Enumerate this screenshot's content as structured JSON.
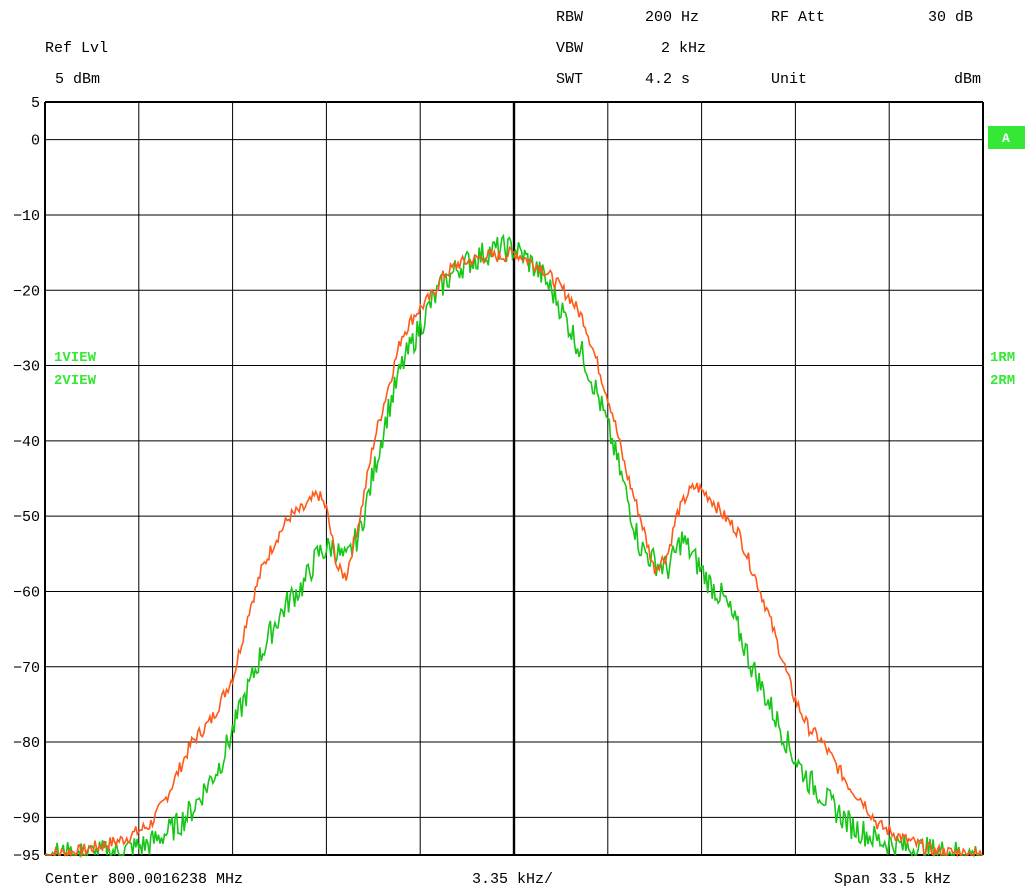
{
  "header": {
    "ref_lvl_label": "Ref Lvl",
    "ref_lvl_value": "5 dBm",
    "rbw_label": "RBW",
    "rbw_value": "200 Hz",
    "vbw_label": "VBW",
    "vbw_value": "2 kHz",
    "swt_label": "SWT",
    "swt_value": "4.2 s",
    "rfatt_label": "RF Att",
    "rfatt_value": "30 dB",
    "unit_label": "Unit",
    "unit_value": "dBm"
  },
  "footer": {
    "center": "Center 800.0016238 MHz",
    "per_div": "3.35 kHz/",
    "span": "Span 33.5 kHz"
  },
  "markers": {
    "trace_badge": "A",
    "view1": "1VIEW",
    "view2": "2VIEW",
    "rm1": "1RM",
    "rm2": "2RM"
  },
  "colors": {
    "trace1": "#ff5a1a",
    "trace2": "#17c617",
    "badge": "#35e835",
    "grid": "#000000"
  },
  "chart_data": {
    "type": "line",
    "xlabel": "",
    "ylabel": "",
    "x_unit": "kHz offset from center",
    "xlim": [
      -16.75,
      16.75
    ],
    "ylim": [
      -95,
      5
    ],
    "grid": true,
    "y_ticks": [
      "5",
      "0",
      "-10",
      "-20",
      "-30",
      "-40",
      "-50",
      "-60",
      "-70",
      "-80",
      "-90",
      "-95"
    ],
    "series": [
      {
        "name": "1VIEW",
        "color": "#ff5a1a",
        "x": [
          -16.75,
          -15.5,
          -14.0,
          -13.0,
          -12.5,
          -12.0,
          -11.5,
          -10.8,
          -10.0,
          -9.5,
          -9.0,
          -8.5,
          -8.0,
          -7.5,
          -7.0,
          -6.7,
          -6.5,
          -6.3,
          -6.0,
          -5.5,
          -5.0,
          -4.5,
          -4.0,
          -3.5,
          -3.0,
          -2.5,
          -2.0,
          -1.5,
          -1.0,
          -0.5,
          0.0,
          0.5,
          1.0,
          1.5,
          2.0,
          2.5,
          3.0,
          3.5,
          4.0,
          4.5,
          5.0,
          5.5,
          5.8,
          6.2,
          6.5,
          7.0,
          7.5,
          8.0,
          8.5,
          9.0,
          9.5,
          10.0,
          10.5,
          11.0,
          11.5,
          12.0,
          12.5,
          13.0,
          13.5,
          14.0,
          15.0,
          16.75
        ],
        "values": [
          -95,
          -94.5,
          -93,
          -91,
          -88,
          -84,
          -80,
          -77,
          -71,
          -63,
          -57,
          -53,
          -50,
          -49,
          -47,
          -49,
          -53,
          -57,
          -58,
          -50,
          -40,
          -33,
          -26,
          -23,
          -21,
          -18,
          -16.5,
          -16,
          -15.5,
          -15.5,
          -15,
          -16,
          -17,
          -19,
          -21,
          -24,
          -30,
          -36,
          -44,
          -50,
          -57,
          -55,
          -50,
          -47,
          -46,
          -47.5,
          -50,
          -52,
          -57,
          -62,
          -68,
          -74,
          -78,
          -80,
          -83,
          -86,
          -88,
          -91,
          -92,
          -93,
          -94.5,
          -95
        ]
      },
      {
        "name": "2VIEW",
        "color": "#17c617",
        "x": [
          -16.75,
          -15.5,
          -14.0,
          -13.0,
          -12.0,
          -11.5,
          -11.0,
          -10.5,
          -10.0,
          -9.5,
          -9.0,
          -8.5,
          -8.0,
          -7.5,
          -7.0,
          -6.5,
          -6.0,
          -5.5,
          -5.0,
          -4.5,
          -4.0,
          -3.5,
          -3.0,
          -2.5,
          -2.0,
          -1.5,
          -1.0,
          -0.5,
          0.0,
          0.5,
          1.0,
          1.5,
          2.0,
          2.5,
          3.0,
          3.5,
          4.0,
          4.5,
          5.0,
          5.5,
          6.0,
          6.5,
          7.0,
          7.5,
          8.0,
          8.5,
          9.0,
          9.5,
          10.0,
          10.5,
          11.0,
          11.5,
          12.0,
          13.0,
          14.0,
          15.0,
          16.75
        ],
        "values": [
          -95,
          -95,
          -94.5,
          -93.5,
          -91,
          -89,
          -86,
          -83,
          -78,
          -73,
          -68,
          -64,
          -61,
          -59,
          -55,
          -54,
          -56,
          -52,
          -44,
          -36,
          -30,
          -26,
          -22,
          -19,
          -17,
          -16,
          -15,
          -14.5,
          -14.5,
          -16,
          -18,
          -21,
          -25,
          -29,
          -34,
          -40,
          -47,
          -54,
          -56,
          -57,
          -53,
          -56,
          -59,
          -61,
          -65,
          -70,
          -74,
          -78,
          -82,
          -85,
          -87,
          -89,
          -91,
          -93,
          -94,
          -94.5,
          -95
        ]
      }
    ]
  }
}
